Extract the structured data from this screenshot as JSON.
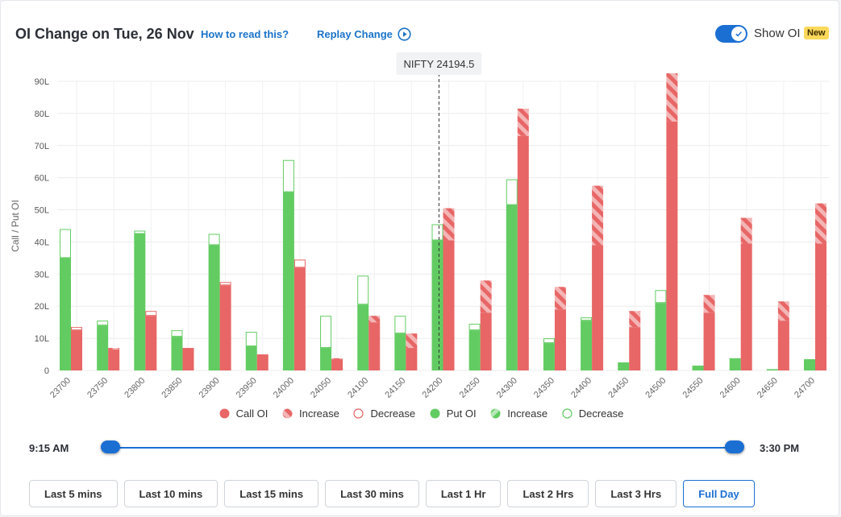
{
  "header": {
    "title": "OI Change on Tue, 26 Nov",
    "how_to_read": "How to read this?",
    "replay": "Replay Change",
    "show_oi_label": "Show OI",
    "new_badge": "New",
    "show_oi_enabled": true
  },
  "colors": {
    "call": "#e86666",
    "call_light": "#f3b5b5",
    "put": "#62cc62",
    "put_light": "#b7e8b7",
    "accent": "#1b6fd3"
  },
  "chart_data": {
    "type": "bar",
    "ylabel": "Call / Put OI",
    "ylim": [
      0,
      90
    ],
    "yticks": [
      0,
      10,
      20,
      30,
      40,
      50,
      60,
      70,
      80,
      90
    ],
    "ytick_labels": [
      "0",
      "10L",
      "20L",
      "30L",
      "40L",
      "50L",
      "60L",
      "70L",
      "80L",
      "90L"
    ],
    "spot_label": "NIFTY 24194.5",
    "spot_value": 24194.5,
    "categories": [
      "23700",
      "23750",
      "23800",
      "23850",
      "23900",
      "23950",
      "24000",
      "24050",
      "24100",
      "24150",
      "24200",
      "24250",
      "24300",
      "24350",
      "24400",
      "24450",
      "24500",
      "24550",
      "24600",
      "24650",
      "24700"
    ],
    "series": [
      {
        "name": "Put OI",
        "start": [
          44,
          15.5,
          43.5,
          12.5,
          42.5,
          12,
          65.5,
          17,
          29.5,
          17,
          45.5,
          14.5,
          59.5,
          10,
          16.5,
          2.5,
          25,
          1.5,
          3.8,
          0.4,
          3.5
        ],
        "end": [
          35,
          14,
          42.5,
          10.5,
          39,
          7.5,
          55.5,
          7,
          20.5,
          11.5,
          40.5,
          12.5,
          51.5,
          8.5,
          15.5,
          2.5,
          21,
          1.5,
          3.8,
          0.4,
          3.5
        ]
      },
      {
        "name": "Call OI",
        "start": [
          13.5,
          6.5,
          18.5,
          7,
          27.5,
          5,
          34.5,
          3.5,
          15,
          7,
          40.5,
          18,
          73,
          19,
          39,
          13.5,
          77.5,
          18,
          39.5,
          15.5,
          39.5
        ],
        "end": [
          12.5,
          7,
          17,
          7,
          26.5,
          5,
          32,
          3.8,
          17,
          11.5,
          50.5,
          28,
          81.5,
          26,
          57.5,
          18.5,
          92.5,
          23.5,
          47.5,
          21.5,
          52
        ]
      }
    ],
    "legend": [
      "Call OI",
      "Increase",
      "Decrease",
      "Put OI",
      "Increase",
      "Decrease"
    ]
  },
  "timeline": {
    "start_label": "9:15 AM",
    "end_label": "3:30 PM"
  },
  "ranges": [
    {
      "label": "Last 5 mins",
      "active": false
    },
    {
      "label": "Last 10 mins",
      "active": false
    },
    {
      "label": "Last 15 mins",
      "active": false
    },
    {
      "label": "Last 30 mins",
      "active": false
    },
    {
      "label": "Last 1 Hr",
      "active": false
    },
    {
      "label": "Last 2 Hrs",
      "active": false
    },
    {
      "label": "Last 3 Hrs",
      "active": false
    },
    {
      "label": "Full Day",
      "active": true
    }
  ]
}
